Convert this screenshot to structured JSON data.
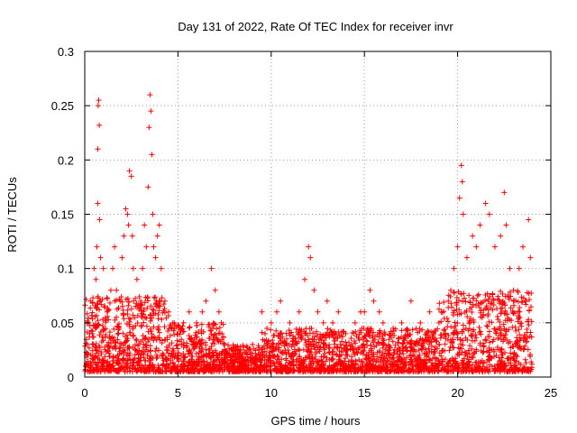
{
  "chart_data": {
    "type": "scatter",
    "title": "Day 131 of 2022, Rate Of TEC Index for receiver invr",
    "xlabel": "GPS time / hours",
    "ylabel": "ROTI / TECUs",
    "xlim": [
      0,
      25
    ],
    "ylim": [
      0,
      0.3
    ],
    "x_ticks": [
      0,
      5,
      10,
      15,
      20,
      25
    ],
    "y_ticks": [
      0,
      0.05,
      0.1,
      0.15,
      0.2,
      0.25,
      0.3
    ],
    "x_tick_labels": [
      "0",
      "5",
      "10",
      "15",
      "20",
      "25"
    ],
    "y_tick_labels": [
      "0",
      "0.05",
      "0.1",
      "0.15",
      "0.2",
      "0.25",
      "0.3"
    ],
    "grid": true,
    "marker": "+",
    "series": [
      {
        "name": "ROTI",
        "color": "#ff0000",
        "points": [
          [
            0.1,
            0.02
          ],
          [
            0.2,
            0.05
          ],
          [
            0.3,
            0.07
          ],
          [
            0.4,
            0.04
          ],
          [
            0.5,
            0.1
          ],
          [
            0.6,
            0.09
          ],
          [
            0.65,
            0.12
          ],
          [
            0.7,
            0.16
          ],
          [
            0.7,
            0.21
          ],
          [
            0.72,
            0.25
          ],
          [
            0.75,
            0.255
          ],
          [
            0.78,
            0.232
          ],
          [
            0.8,
            0.145
          ],
          [
            0.85,
            0.11
          ],
          [
            1.0,
            0.1
          ],
          [
            1.2,
            0.06
          ],
          [
            1.4,
            0.08
          ],
          [
            1.5,
            0.1
          ],
          [
            1.6,
            0.12
          ],
          [
            1.7,
            0.08
          ],
          [
            1.9,
            0.07
          ],
          [
            2.0,
            0.11
          ],
          [
            2.1,
            0.13
          ],
          [
            2.2,
            0.155
          ],
          [
            2.3,
            0.15
          ],
          [
            2.35,
            0.14
          ],
          [
            2.4,
            0.19
          ],
          [
            2.5,
            0.185
          ],
          [
            2.55,
            0.13
          ],
          [
            2.6,
            0.1
          ],
          [
            2.8,
            0.09
          ],
          [
            3.0,
            0.07
          ],
          [
            3.1,
            0.1
          ],
          [
            3.2,
            0.14
          ],
          [
            3.3,
            0.12
          ],
          [
            3.4,
            0.175
          ],
          [
            3.45,
            0.23
          ],
          [
            3.5,
            0.26
          ],
          [
            3.55,
            0.245
          ],
          [
            3.6,
            0.205
          ],
          [
            3.65,
            0.15
          ],
          [
            3.7,
            0.12
          ],
          [
            3.8,
            0.11
          ],
          [
            3.9,
            0.13
          ],
          [
            4.0,
            0.14
          ],
          [
            4.1,
            0.1
          ],
          [
            4.3,
            0.07
          ],
          [
            4.5,
            0.06
          ],
          [
            4.8,
            0.05
          ],
          [
            5.0,
            0.04
          ],
          [
            5.3,
            0.05
          ],
          [
            5.6,
            0.06
          ],
          [
            6.0,
            0.05
          ],
          [
            6.3,
            0.06
          ],
          [
            6.5,
            0.07
          ],
          [
            6.8,
            0.1
          ],
          [
            7.0,
            0.08
          ],
          [
            7.2,
            0.06
          ],
          [
            7.5,
            0.03
          ],
          [
            8.0,
            0.02
          ],
          [
            8.5,
            0.025
          ],
          [
            9.0,
            0.03
          ],
          [
            9.5,
            0.06
          ],
          [
            10.0,
            0.05
          ],
          [
            10.3,
            0.06
          ],
          [
            10.5,
            0.07
          ],
          [
            11.0,
            0.05
          ],
          [
            11.5,
            0.06
          ],
          [
            11.8,
            0.09
          ],
          [
            12.0,
            0.12
          ],
          [
            12.1,
            0.11
          ],
          [
            12.3,
            0.08
          ],
          [
            12.5,
            0.06
          ],
          [
            12.8,
            0.05
          ],
          [
            13.0,
            0.07
          ],
          [
            13.3,
            0.05
          ],
          [
            13.6,
            0.06
          ],
          [
            14.0,
            0.04
          ],
          [
            14.5,
            0.05
          ],
          [
            14.8,
            0.06
          ],
          [
            15.0,
            0.06
          ],
          [
            15.3,
            0.08
          ],
          [
            15.5,
            0.07
          ],
          [
            15.8,
            0.06
          ],
          [
            16.0,
            0.05
          ],
          [
            16.5,
            0.04
          ],
          [
            17.0,
            0.05
          ],
          [
            17.5,
            0.07
          ],
          [
            18.0,
            0.05
          ],
          [
            18.5,
            0.06
          ],
          [
            19.0,
            0.05
          ],
          [
            19.5,
            0.07
          ],
          [
            19.8,
            0.1
          ],
          [
            20.0,
            0.12
          ],
          [
            20.1,
            0.165
          ],
          [
            20.2,
            0.195
          ],
          [
            20.25,
            0.18
          ],
          [
            20.3,
            0.15
          ],
          [
            20.5,
            0.11
          ],
          [
            20.8,
            0.13
          ],
          [
            21.0,
            0.12
          ],
          [
            21.2,
            0.14
          ],
          [
            21.5,
            0.16
          ],
          [
            21.7,
            0.15
          ],
          [
            22.0,
            0.12
          ],
          [
            22.3,
            0.13
          ],
          [
            22.5,
            0.17
          ],
          [
            22.6,
            0.14
          ],
          [
            22.8,
            0.1
          ],
          [
            23.0,
            0.08
          ],
          [
            23.3,
            0.1
          ],
          [
            23.5,
            0.12
          ],
          [
            23.8,
            0.145
          ],
          [
            23.9,
            0.11
          ]
        ]
      }
    ]
  }
}
